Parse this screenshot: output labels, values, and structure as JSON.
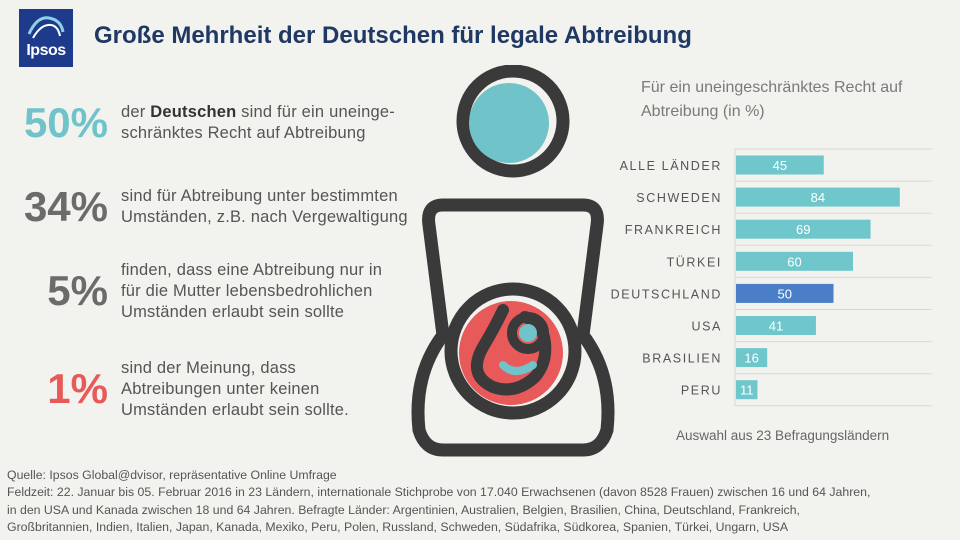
{
  "header": {
    "logo_text": "Ipsos",
    "title": "Große Mehrheit der Deutschen für legale Abtreibung"
  },
  "stats": [
    {
      "pct": "50%",
      "color": "#6fc3c9",
      "pre": "der ",
      "bold": "Deutschen",
      "post": " sind für ein uneinge-",
      "line2": "schränktes Recht auf Abtreibung"
    },
    {
      "pct": "34%",
      "color": "#6b6b6b",
      "line1": "sind für Abtreibung  unter bestimmten",
      "line2": "Umständen, z.B. nach Vergewaltigung"
    },
    {
      "pct": "5%",
      "color": "#6b6b6b",
      "line1": "finden, dass eine Abtreibung nur in",
      "line2": "für die Mutter lebensbedrohlichen",
      "line3": "Umständen erlaubt sein sollte"
    },
    {
      "pct": "1%",
      "color": "#e8595a",
      "line1": "sind der Meinung, dass",
      "line2": "Abtreibungen unter keinen",
      "line3": "Umständen erlaubt sein sollte."
    }
  ],
  "chart_title": "Für ein uneingeschränktes Recht auf Abtreibung (in %)",
  "chart_note": "Auswahl aus 23 Befragungsländern",
  "chart_data": {
    "type": "bar",
    "orientation": "horizontal",
    "title": "Für ein uneingeschränktes Recht auf Abtreibung (in %)",
    "categories": [
      "ALLE LÄNDER",
      "SCHWEDEN",
      "FRANKREICH",
      "TÜRKEI",
      "DEUTSCHLAND",
      "USA",
      "BRASILIEN",
      "PERU"
    ],
    "values": [
      45,
      84,
      69,
      60,
      50,
      41,
      16,
      11
    ],
    "highlight": "DEUTSCHLAND",
    "bar_color": "#6fc7cc",
    "highlight_color": "#4a7fc8",
    "grid": true,
    "xlim": [
      0,
      100
    ]
  },
  "footer": {
    "line1": "Quelle: Ipsos Global@dvisor, repräsentative Online Umfrage",
    "line2": "Feldzeit: 22. Januar bis 05.  Februar 2016  in 23 Ländern, internationale Stichprobe von 17.040  Erwachsenen (davon 8528 Frauen) zwischen 16 und 64 Jahren,",
    "line3": "in den USA und Kanada zwischen 18 und 64 Jahren. Befragte Länder: Argentinien, Australien, Belgien, Brasilien, China, Deutschland, Frankreich,",
    "line4": "Großbritannien, Indien, Italien, Japan, Kanada, Mexiko, Peru, Polen, Russland, Schweden, Südafrika, Südkorea, Spanien, Türkei, Ungarn, USA"
  },
  "colors": {
    "title": "#1f3864",
    "teal": "#6fc3c9",
    "red": "#e8595a",
    "dark": "#3a3a3a"
  }
}
